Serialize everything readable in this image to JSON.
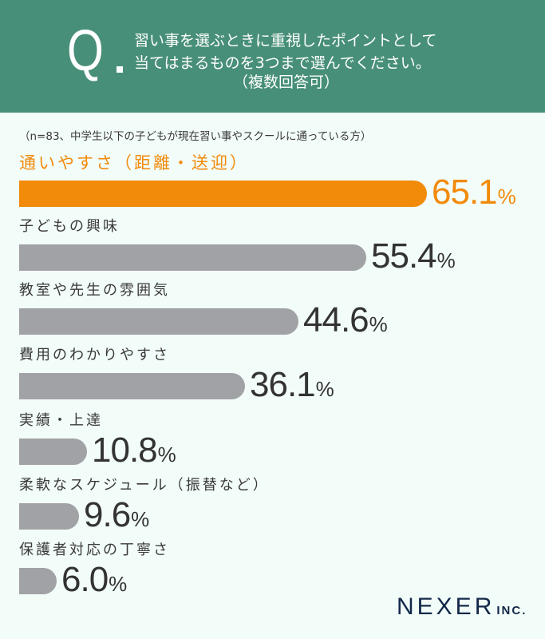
{
  "header": {
    "q_mark": "Q",
    "title_lines": [
      "習い事を選ぶときに重視したポイントとして",
      "当てはまるものを3つまで選んでください。",
      "（複数回答可）"
    ]
  },
  "note": "（n=83、中学生以下の子どもが現在習い事やスクールに通っている方）",
  "colors": {
    "header_bg": "#478f78",
    "page_bg": "#f2fcf8",
    "highlight": "#f28a0a",
    "bar_default": "#a1a2a6",
    "logo": "#13284a"
  },
  "bars": [
    {
      "label": "通いやすさ（距離・送迎）",
      "num": "65.1",
      "pct": "%"
    },
    {
      "label": "子どもの興味",
      "num": "55.4",
      "pct": "%"
    },
    {
      "label": "教室や先生の雰囲気",
      "num": "44.6",
      "pct": "%"
    },
    {
      "label": "費用のわかりやすさ",
      "num": "36.1",
      "pct": "%"
    },
    {
      "label": "実績・上達",
      "num": "10.8",
      "pct": "%"
    },
    {
      "label": "柔軟なスケジュール（振替など）",
      "num": "9.6",
      "pct": "%"
    },
    {
      "label": "保護者対応の丁寧さ",
      "num": "6.0",
      "pct": "%"
    }
  ],
  "logo": {
    "main": "NEXER",
    "sub": "INC."
  },
  "chart_data": {
    "type": "bar",
    "orientation": "horizontal",
    "title": "習い事を選ぶときに重視したポイントとして当てはまるものを3つまで選んでください。（複数回答可）",
    "subtitle": "（n=83、中学生以下の子どもが現在習い事やスクールに通っている方）",
    "categories": [
      "通いやすさ（距離・送迎）",
      "子どもの興味",
      "教室や先生の雰囲気",
      "費用のわかりやすさ",
      "実績・上達",
      "柔軟なスケジュール（振替など）",
      "保護者対応の丁寧さ"
    ],
    "values": [
      65.1,
      55.4,
      44.6,
      36.1,
      10.8,
      9.6,
      6.0
    ],
    "unit": "%",
    "highlighted_category": "通いやすさ（距離・送迎）",
    "xlabel": "",
    "ylabel": "",
    "grid": false,
    "legend": "none",
    "source": "NEXER INC."
  }
}
